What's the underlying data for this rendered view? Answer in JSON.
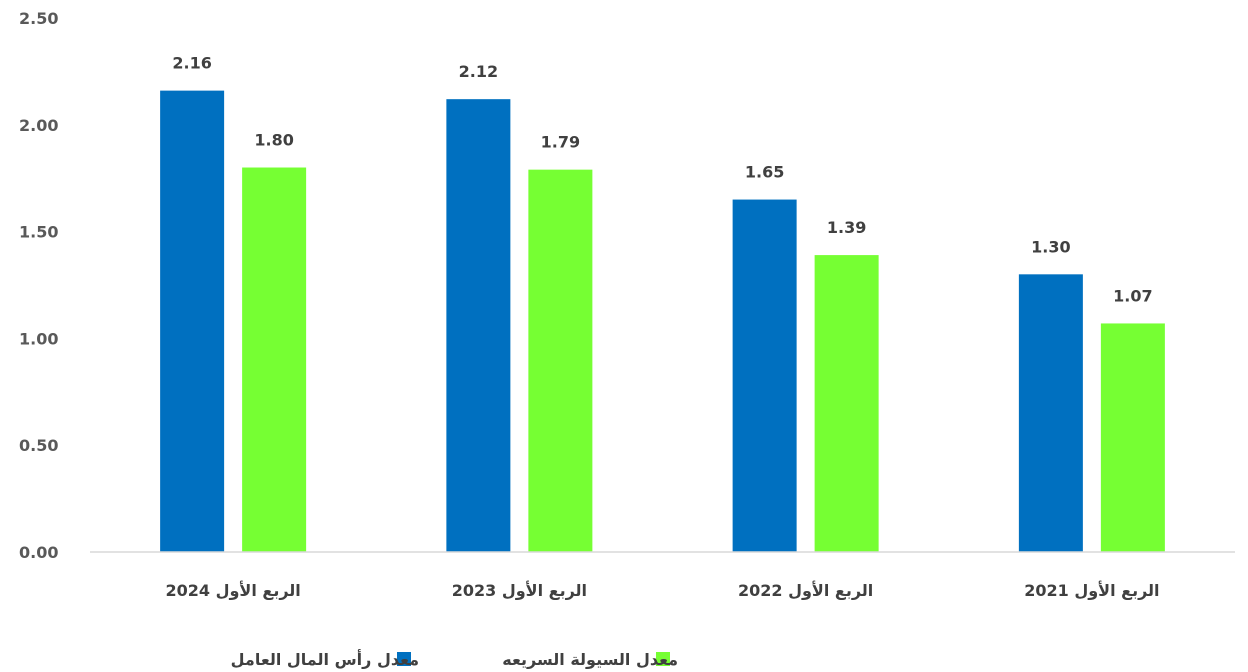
{
  "chart_data": {
    "type": "bar",
    "categories": [
      "الربع الأول 2024",
      "الربع الأول 2023",
      "الربع الأول 2022",
      "الربع الأول 2021"
    ],
    "series": [
      {
        "name": "معدل رأس المال العامل",
        "values": [
          2.16,
          2.12,
          1.65,
          1.3
        ],
        "color": "#0070C0"
      },
      {
        "name": "معدل السيولة السريعه",
        "values": [
          1.8,
          1.79,
          1.39,
          1.07
        ],
        "color": "#76FF33"
      }
    ],
    "value_labels": [
      [
        "2.16",
        "2.12",
        "1.65",
        "1.30"
      ],
      [
        "1.80",
        "1.79",
        "1.39",
        "1.07"
      ]
    ],
    "ylim": [
      0,
      2.5
    ],
    "yticks": [
      "0.00",
      "0.50",
      "1.00",
      "1.50",
      "2.00",
      "2.50"
    ],
    "ytick_values": [
      0,
      0.5,
      1.0,
      1.5,
      2.0,
      2.5
    ],
    "grid": false,
    "legend_position": "bottom",
    "axis_color": "#D9D9D9"
  }
}
